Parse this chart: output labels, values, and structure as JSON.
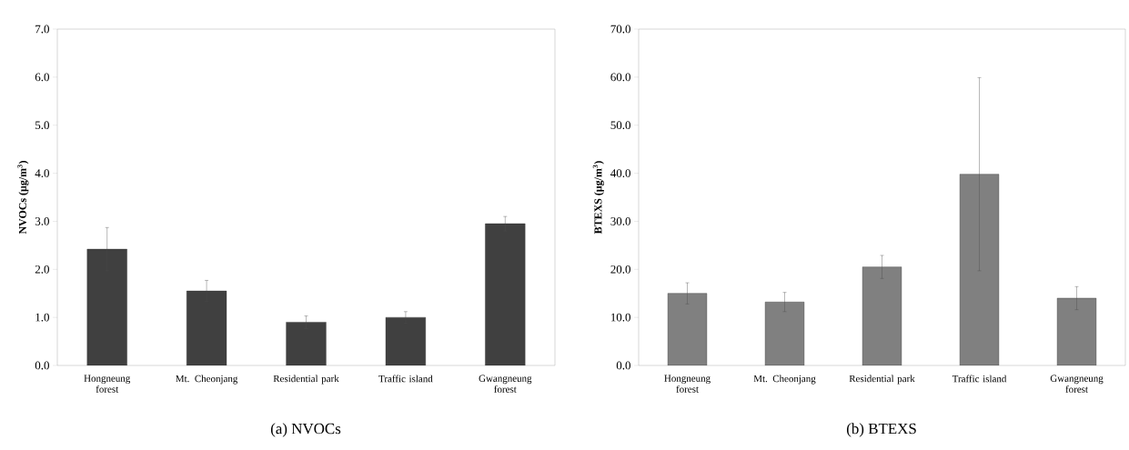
{
  "chart_data": [
    {
      "type": "bar",
      "title": "(a)  NVOCs",
      "ylabel": "**NVOCs (μg/m$^{3}$)**",
      "categories": [
        "Hongneung forest",
        "Mt. Cheonjang",
        "Residential park",
        "Traffic island",
        "Gwangneung forest"
      ],
      "values": [
        2.42,
        1.55,
        0.9,
        1.0,
        2.95
      ],
      "errors": [
        0.45,
        0.22,
        0.13,
        0.12,
        0.15
      ],
      "color": "#404040",
      "ylim": [
        0,
        7
      ],
      "yticks": [
        {
          "value": 0,
          "label": "0.0"
        },
        {
          "value": 1,
          "label": "1.0"
        },
        {
          "value": 2,
          "label": "2.0"
        },
        {
          "value": 3,
          "label": "3.0"
        },
        {
          "value": 4,
          "label": "4.0"
        },
        {
          "value": 5,
          "label": "5.0"
        },
        {
          "value": 6,
          "label": "6.0"
        },
        {
          "value": 7,
          "label": "7.0"
        }
      ]
    },
    {
      "type": "bar",
      "title": "(b)  BTEXS",
      "ylabel": "**BTEXS (μg/m$^{3}$)**",
      "categories": [
        "Hongneung forest",
        "Mt. Cheonjang",
        "Residential park",
        "Traffic island",
        "Gwangneung forest"
      ],
      "values": [
        15.0,
        13.2,
        20.5,
        39.8,
        14.0
      ],
      "errors": [
        2.2,
        2.0,
        2.4,
        20.1,
        2.4
      ],
      "color": "#808080",
      "ylim": [
        0,
        70
      ],
      "yticks": [
        {
          "value": 0,
          "label": "0.0"
        },
        {
          "value": 10,
          "label": "10.0"
        },
        {
          "value": 20,
          "label": "20.0"
        },
        {
          "value": 30,
          "label": "30.0"
        },
        {
          "value": 40,
          "label": "40.0"
        },
        {
          "value": 50,
          "label": "50.0"
        },
        {
          "value": 60,
          "label": "60.0"
        },
        {
          "value": 70,
          "label": "70.0"
        }
      ]
    }
  ]
}
